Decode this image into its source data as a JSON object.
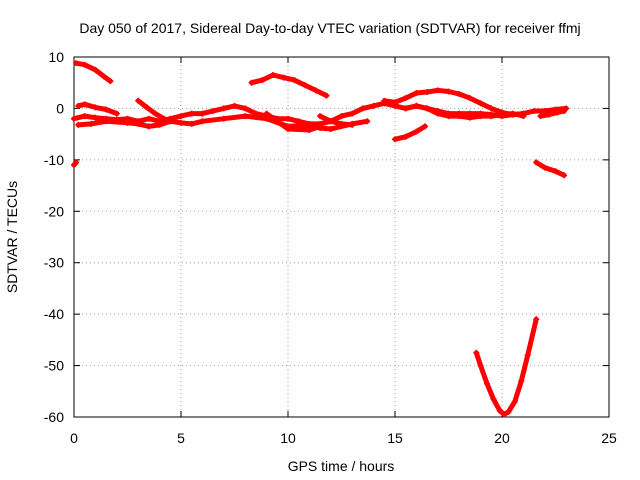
{
  "chart_data": {
    "type": "scatter",
    "title": "Day 050 of 2017, Sidereal Day-to-day VTEC variation (SDTVAR) for receiver ffmj",
    "xlabel": "GPS time / hours",
    "ylabel": "SDTVAR / TECUs",
    "xlim": [
      0,
      25
    ],
    "ylim": [
      -60,
      10
    ],
    "x_ticks": [
      0,
      5,
      10,
      15,
      20,
      25
    ],
    "y_ticks": [
      10,
      0,
      -10,
      -20,
      -30,
      -40,
      -50,
      -60
    ],
    "grid": true,
    "series_color": "#ff0000",
    "series": [
      {
        "x": [
          0.0,
          0.1
        ],
        "y": [
          -11.0,
          -10.5
        ]
      },
      {
        "x": [
          0.1,
          0.5,
          1.0,
          1.4,
          1.7
        ],
        "y": [
          8.8,
          8.5,
          7.5,
          6.2,
          5.3
        ]
      },
      {
        "x": [
          0.0,
          0.5,
          1.0,
          1.5,
          2.0,
          2.5,
          3.0,
          3.5,
          4.0,
          4.5,
          5.0,
          5.5,
          6.0,
          6.5,
          7.0,
          7.5,
          8.0,
          8.5,
          9.0,
          9.5,
          10.0,
          10.5,
          11.0,
          11.5,
          12.0,
          12.5,
          13.0,
          13.5,
          14.0,
          14.5,
          15.0,
          15.5,
          16.0,
          16.5,
          17.0,
          17.5,
          18.0,
          18.5,
          19.0,
          19.5,
          20.0,
          20.5,
          21.0,
          21.5,
          22.0,
          22.5,
          23.0
        ],
        "y": [
          -2.0,
          -1.5,
          -1.8,
          -2.0,
          -2.2,
          -2.0,
          -2.5,
          -2.0,
          -2.5,
          -2.0,
          -1.5,
          -1.0,
          -1.0,
          -0.5,
          0.0,
          0.5,
          0.0,
          -1.0,
          -1.5,
          -2.0,
          -2.0,
          -2.5,
          -3.0,
          -3.0,
          -2.5,
          -1.5,
          -1.0,
          0.0,
          0.5,
          1.0,
          0.5,
          0.0,
          0.5,
          0.0,
          -0.5,
          -1.0,
          -1.0,
          -1.0,
          -1.0,
          -1.2,
          -1.5,
          -1.2,
          -1.0,
          -0.5,
          -0.5,
          -0.2,
          0.0
        ]
      },
      {
        "x": [
          0.2,
          0.8,
          1.5,
          2.5,
          3.0,
          3.5,
          4.0,
          4.5,
          5.0,
          5.5,
          6.0,
          7.0,
          8.0,
          9.0,
          10.0,
          11.0,
          11.5,
          12.0,
          13.0,
          13.7
        ],
        "y": [
          -3.2,
          -3.0,
          -2.5,
          -2.8,
          -3.0,
          -3.5,
          -3.2,
          -2.5,
          -2.8,
          -3.0,
          -2.5,
          -2.0,
          -1.5,
          -2.0,
          -3.5,
          -3.2,
          -3.8,
          -4.0,
          -3.0,
          -2.5
        ]
      },
      {
        "x": [
          0.2,
          0.5,
          1.0,
          1.5,
          2.0
        ],
        "y": [
          0.5,
          0.8,
          0.2,
          -0.2,
          -1.0
        ]
      },
      {
        "x": [
          3.0,
          3.4,
          3.8,
          4.2,
          4.5
        ],
        "y": [
          1.5,
          0.2,
          -1.0,
          -2.0,
          -2.5
        ]
      },
      {
        "x": [
          9.0,
          10.0,
          11.0,
          11.5
        ],
        "y": [
          -1.0,
          -4.0,
          -4.2,
          -3.5
        ]
      },
      {
        "x": [
          11.5,
          12.0,
          12.5,
          13.0
        ],
        "y": [
          -1.5,
          -2.5,
          -3.0,
          -3.2
        ]
      },
      {
        "x": [
          8.3,
          8.8,
          9.3,
          9.8,
          10.3,
          10.8,
          11.3,
          11.8
        ],
        "y": [
          5.0,
          5.5,
          6.5,
          6.0,
          5.5,
          4.5,
          3.5,
          2.5
        ]
      },
      {
        "x": [
          15.0,
          15.5,
          16.0,
          16.4
        ],
        "y": [
          -6.0,
          -5.5,
          -4.5,
          -3.5
        ]
      },
      {
        "x": [
          14.5,
          15.0,
          15.5,
          16.0,
          16.5,
          17.0,
          17.5,
          18.0,
          18.5,
          19.0,
          19.5,
          20.0,
          20.5,
          21.0
        ],
        "y": [
          1.5,
          1.2,
          2.0,
          3.0,
          3.2,
          3.5,
          3.3,
          2.8,
          2.0,
          1.0,
          0.0,
          -0.8,
          -1.2,
          -1.0
        ]
      },
      {
        "x": [
          15.5,
          16.0,
          16.5,
          17.0,
          17.5,
          18.0,
          18.5,
          19.0,
          19.5,
          20.0,
          20.5,
          21.0
        ],
        "y": [
          0.0,
          0.5,
          0.0,
          -1.0,
          -1.5,
          -1.5,
          -1.8,
          -1.5,
          -1.5,
          -1.2,
          -1.0,
          -1.5
        ]
      },
      {
        "x": [
          21.6,
          22.0,
          22.5,
          22.9
        ],
        "y": [
          -10.5,
          -11.5,
          -12.2,
          -13.0
        ]
      },
      {
        "x": [
          21.8,
          22.2,
          22.6,
          22.9
        ],
        "y": [
          -1.5,
          -1.2,
          -0.8,
          -0.5
        ]
      },
      {
        "x": [
          18.8,
          19.0,
          19.3,
          19.6,
          19.9,
          20.1,
          20.3,
          20.6,
          20.9,
          21.2,
          21.6
        ],
        "y": [
          -47.5,
          -50.0,
          -53.5,
          -56.5,
          -58.8,
          -59.5,
          -59.0,
          -57.0,
          -53.0,
          -48.0,
          -41.0
        ]
      }
    ]
  }
}
